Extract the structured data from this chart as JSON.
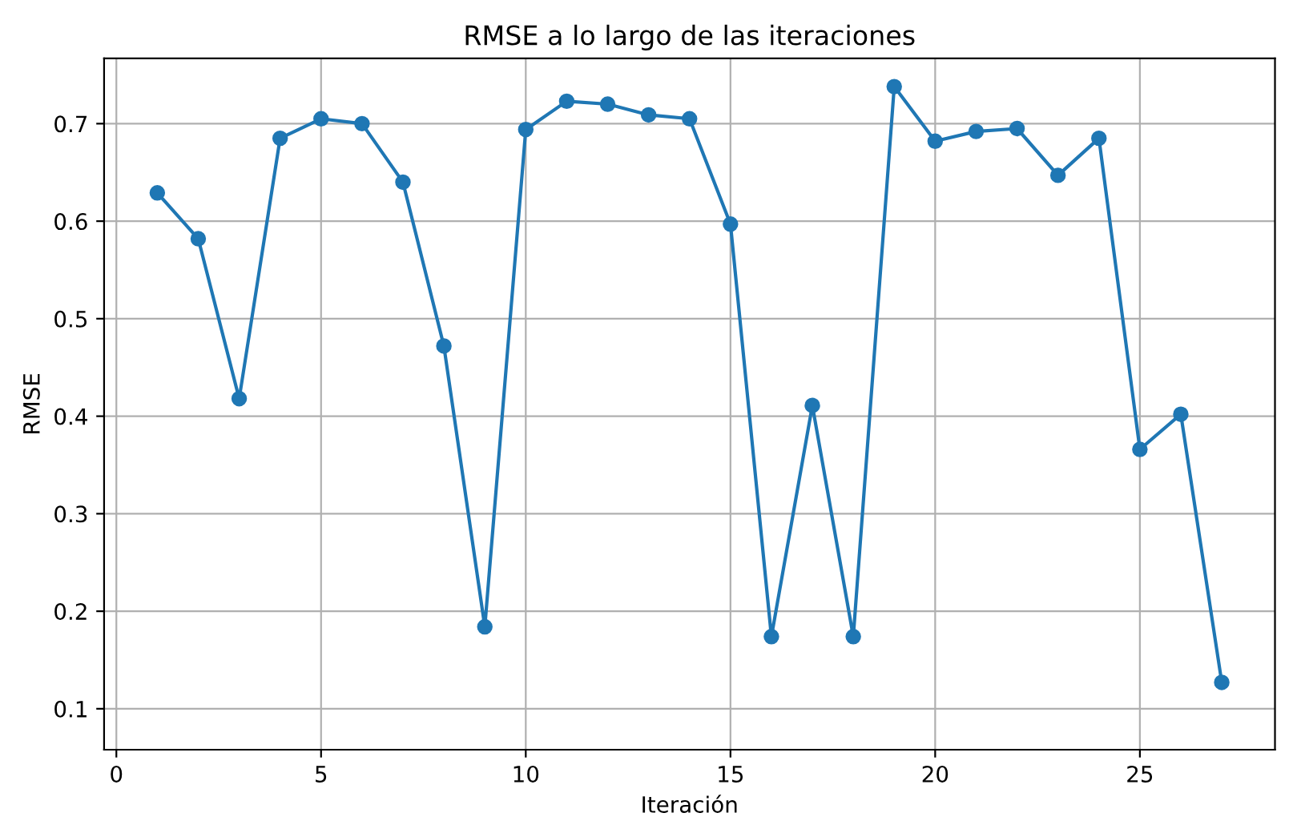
{
  "chart_data": {
    "type": "line",
    "title": "RMSE a lo largo de las iteraciones",
    "xlabel": "Iteración",
    "ylabel": "RMSE",
    "x": [
      1,
      2,
      3,
      4,
      5,
      6,
      7,
      8,
      9,
      10,
      11,
      12,
      13,
      14,
      15,
      16,
      17,
      18,
      19,
      20,
      21,
      22,
      23,
      24,
      25,
      26,
      27
    ],
    "series": [
      {
        "color": "#1f77b4",
        "values": [
          0.629,
          0.582,
          0.418,
          0.685,
          0.705,
          0.7,
          0.64,
          0.472,
          0.184,
          0.694,
          0.723,
          0.72,
          0.709,
          0.705,
          0.597,
          0.174,
          0.411,
          0.174,
          0.738,
          0.682,
          0.692,
          0.695,
          0.647,
          0.685,
          0.366,
          0.402,
          0.127
        ]
      }
    ],
    "xlim": [
      -0.3,
      28.3
    ],
    "ylim": [
      0.058,
      0.767
    ],
    "xticks": [
      0,
      5,
      10,
      15,
      20,
      25
    ],
    "yticks": [
      0.1,
      0.2,
      0.3,
      0.4,
      0.5,
      0.6,
      0.7
    ],
    "grid": true,
    "marker": "circle",
    "line_style": "solid"
  }
}
